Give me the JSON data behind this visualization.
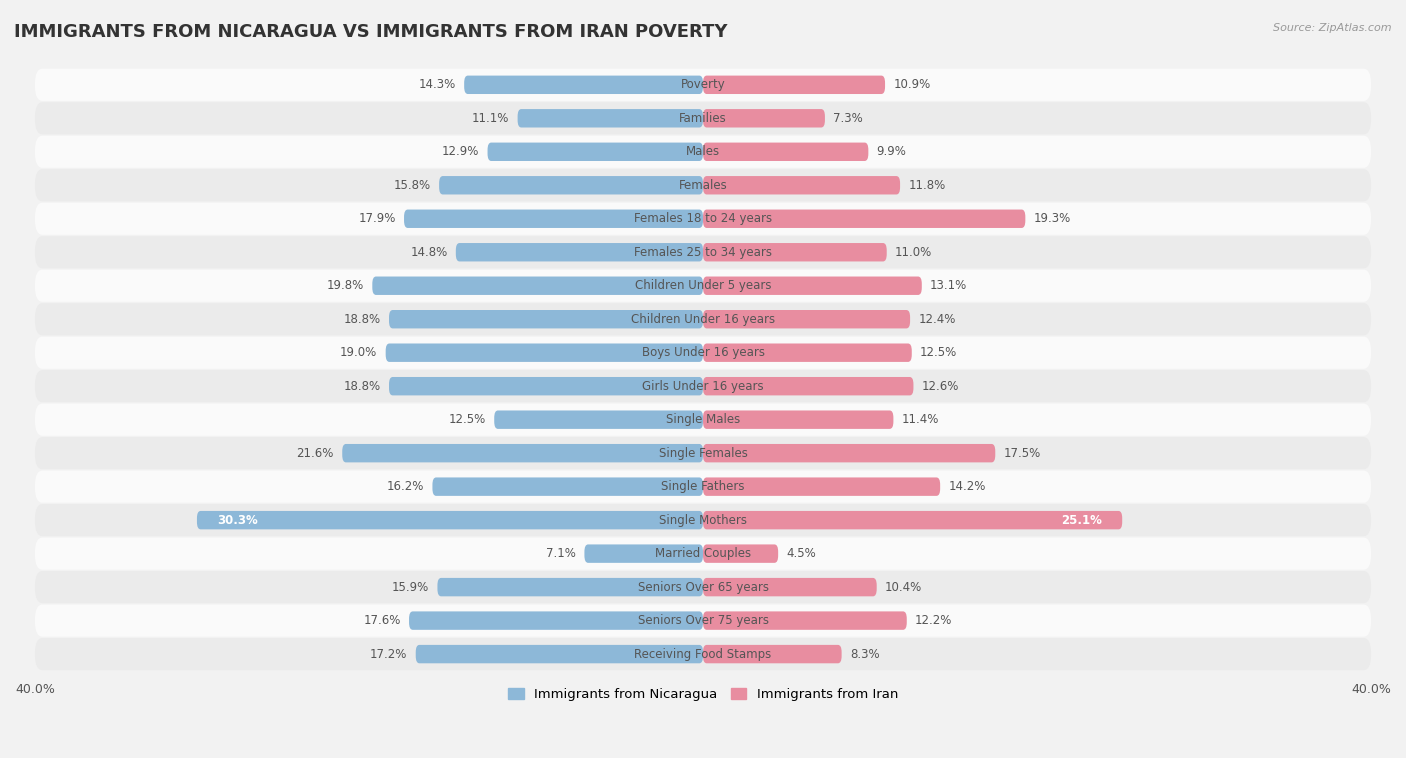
{
  "title": "IMMIGRANTS FROM NICARAGUA VS IMMIGRANTS FROM IRAN POVERTY",
  "source": "Source: ZipAtlas.com",
  "categories": [
    "Poverty",
    "Families",
    "Males",
    "Females",
    "Females 18 to 24 years",
    "Females 25 to 34 years",
    "Children Under 5 years",
    "Children Under 16 years",
    "Boys Under 16 years",
    "Girls Under 16 years",
    "Single Males",
    "Single Females",
    "Single Fathers",
    "Single Mothers",
    "Married Couples",
    "Seniors Over 65 years",
    "Seniors Over 75 years",
    "Receiving Food Stamps"
  ],
  "nicaragua_values": [
    14.3,
    11.1,
    12.9,
    15.8,
    17.9,
    14.8,
    19.8,
    18.8,
    19.0,
    18.8,
    12.5,
    21.6,
    16.2,
    30.3,
    7.1,
    15.9,
    17.6,
    17.2
  ],
  "iran_values": [
    10.9,
    7.3,
    9.9,
    11.8,
    19.3,
    11.0,
    13.1,
    12.4,
    12.5,
    12.6,
    11.4,
    17.5,
    14.2,
    25.1,
    4.5,
    10.4,
    12.2,
    8.3
  ],
  "nicaragua_color": "#8db8d8",
  "iran_color": "#e88da0",
  "background_color": "#f2f2f2",
  "row_light_color": "#fafafa",
  "row_dark_color": "#ebebeb",
  "axis_limit": 40.0,
  "legend_nicaragua": "Immigrants from Nicaragua",
  "legend_iran": "Immigrants from Iran",
  "label_color": "#555555",
  "white_label_color": "#ffffff",
  "title_color": "#333333",
  "source_color": "#999999"
}
